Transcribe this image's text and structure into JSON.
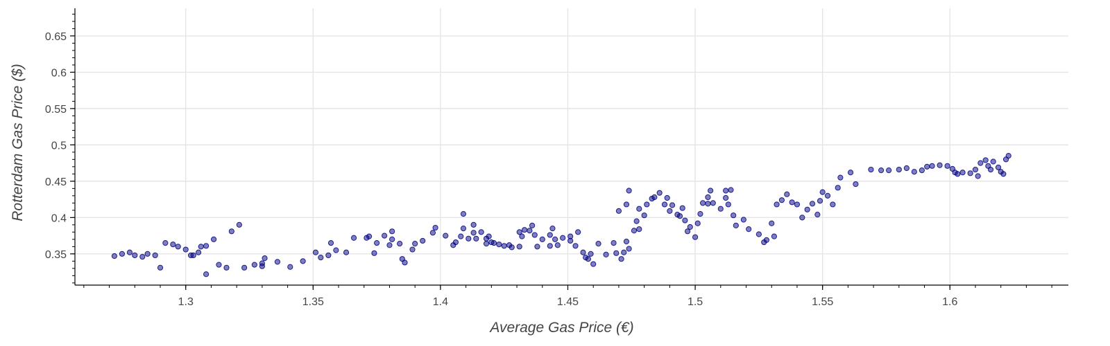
{
  "chart_data": {
    "type": "scatter",
    "title": "",
    "xlabel": "Average Gas Price (€)",
    "ylabel": "Rotterdam Gas Price ($)",
    "xlim": [
      1.2565,
      1.6465
    ],
    "ylim": [
      0.307,
      0.688
    ],
    "x_ticks": [
      "1.3",
      "1.35",
      "1.4",
      "1.45",
      "1.5",
      "1.55",
      "1.6"
    ],
    "y_ticks": [
      "0.35",
      "0.4",
      "0.45",
      "0.5",
      "0.55",
      "0.6",
      "0.65"
    ],
    "grid": true,
    "legend": "none",
    "point_color": "#000080",
    "points": [
      [
        1.272,
        0.347
      ],
      [
        1.275,
        0.35
      ],
      [
        1.278,
        0.352
      ],
      [
        1.28,
        0.348
      ],
      [
        1.283,
        0.346
      ],
      [
        1.285,
        0.35
      ],
      [
        1.288,
        0.348
      ],
      [
        1.29,
        0.331
      ],
      [
        1.292,
        0.365
      ],
      [
        1.295,
        0.363
      ],
      [
        1.297,
        0.36
      ],
      [
        1.3,
        0.356
      ],
      [
        1.302,
        0.348
      ],
      [
        1.303,
        0.348
      ],
      [
        1.306,
        0.36
      ],
      [
        1.308,
        0.361
      ],
      [
        1.305,
        0.352
      ],
      [
        1.311,
        0.37
      ],
      [
        1.318,
        0.381
      ],
      [
        1.321,
        0.39
      ],
      [
        1.308,
        0.322
      ],
      [
        1.313,
        0.335
      ],
      [
        1.316,
        0.331
      ],
      [
        1.323,
        0.331
      ],
      [
        1.327,
        0.335
      ],
      [
        1.33,
        0.333
      ],
      [
        1.331,
        0.344
      ],
      [
        1.33,
        0.337
      ],
      [
        1.336,
        0.339
      ],
      [
        1.341,
        0.332
      ],
      [
        1.346,
        0.34
      ],
      [
        1.356,
        0.348
      ],
      [
        1.353,
        0.345
      ],
      [
        1.351,
        0.352
      ],
      [
        1.359,
        0.355
      ],
      [
        1.357,
        0.365
      ],
      [
        1.363,
        0.352
      ],
      [
        1.366,
        0.372
      ],
      [
        1.371,
        0.372
      ],
      [
        1.372,
        0.374
      ],
      [
        1.375,
        0.365
      ],
      [
        1.374,
        0.351
      ],
      [
        1.378,
        0.375
      ],
      [
        1.381,
        0.381
      ],
      [
        1.381,
        0.37
      ],
      [
        1.38,
        0.362
      ],
      [
        1.384,
        0.364
      ],
      [
        1.385,
        0.343
      ],
      [
        1.386,
        0.338
      ],
      [
        1.389,
        0.356
      ],
      [
        1.39,
        0.364
      ],
      [
        1.393,
        0.368
      ],
      [
        1.397,
        0.379
      ],
      [
        1.398,
        0.386
      ],
      [
        1.402,
        0.375
      ],
      [
        1.405,
        0.362
      ],
      [
        1.406,
        0.366
      ],
      [
        1.408,
        0.374
      ],
      [
        1.409,
        0.385
      ],
      [
        1.411,
        0.371
      ],
      [
        1.413,
        0.379
      ],
      [
        1.414,
        0.371
      ],
      [
        1.409,
        0.405
      ],
      [
        1.413,
        0.39
      ],
      [
        1.416,
        0.38
      ],
      [
        1.418,
        0.371
      ],
      [
        1.419,
        0.374
      ],
      [
        1.418,
        0.364
      ],
      [
        1.42,
        0.366
      ],
      [
        1.421,
        0.365
      ],
      [
        1.423,
        0.363
      ],
      [
        1.425,
        0.361
      ],
      [
        1.427,
        0.362
      ],
      [
        1.428,
        0.359
      ],
      [
        1.431,
        0.36
      ],
      [
        1.432,
        0.374
      ],
      [
        1.431,
        0.38
      ],
      [
        1.433,
        0.383
      ],
      [
        1.436,
        0.389
      ],
      [
        1.435,
        0.382
      ],
      [
        1.437,
        0.376
      ],
      [
        1.438,
        0.36
      ],
      [
        1.44,
        0.37
      ],
      [
        1.443,
        0.361
      ],
      [
        1.446,
        0.362
      ],
      [
        1.443,
        0.376
      ],
      [
        1.444,
        0.385
      ],
      [
        1.445,
        0.37
      ],
      [
        1.448,
        0.372
      ],
      [
        1.451,
        0.368
      ],
      [
        1.451,
        0.374
      ],
      [
        1.454,
        0.38
      ],
      [
        1.453,
        0.361
      ],
      [
        1.456,
        0.352
      ],
      [
        1.457,
        0.345
      ],
      [
        1.458,
        0.343
      ],
      [
        1.46,
        0.336
      ],
      [
        1.459,
        0.35
      ],
      [
        1.462,
        0.364
      ],
      [
        1.465,
        0.349
      ],
      [
        1.468,
        0.365
      ],
      [
        1.469,
        0.351
      ],
      [
        1.472,
        0.352
      ],
      [
        1.471,
        0.343
      ],
      [
        1.474,
        0.357
      ],
      [
        1.473,
        0.367
      ],
      [
        1.476,
        0.382
      ],
      [
        1.478,
        0.384
      ],
      [
        1.477,
        0.395
      ],
      [
        1.48,
        0.403
      ],
      [
        1.478,
        0.412
      ],
      [
        1.481,
        0.418
      ],
      [
        1.483,
        0.426
      ],
      [
        1.484,
        0.428
      ],
      [
        1.47,
        0.409
      ],
      [
        1.473,
        0.418
      ],
      [
        1.474,
        0.437
      ],
      [
        1.486,
        0.434
      ],
      [
        1.489,
        0.427
      ],
      [
        1.488,
        0.418
      ],
      [
        1.491,
        0.417
      ],
      [
        1.49,
        0.409
      ],
      [
        1.493,
        0.404
      ],
      [
        1.495,
        0.413
      ],
      [
        1.494,
        0.402
      ],
      [
        1.496,
        0.396
      ],
      [
        1.498,
        0.387
      ],
      [
        1.497,
        0.381
      ],
      [
        1.5,
        0.373
      ],
      [
        1.501,
        0.392
      ],
      [
        1.502,
        0.405
      ],
      [
        1.503,
        0.42
      ],
      [
        1.505,
        0.419
      ],
      [
        1.505,
        0.428
      ],
      [
        1.507,
        0.42
      ],
      [
        1.506,
        0.437
      ],
      [
        1.51,
        0.412
      ],
      [
        1.512,
        0.427
      ],
      [
        1.512,
        0.437
      ],
      [
        1.514,
        0.438
      ],
      [
        1.513,
        0.418
      ],
      [
        1.515,
        0.403
      ],
      [
        1.516,
        0.389
      ],
      [
        1.519,
        0.397
      ],
      [
        1.521,
        0.384
      ],
      [
        1.525,
        0.377
      ],
      [
        1.528,
        0.369
      ],
      [
        1.527,
        0.366
      ],
      [
        1.531,
        0.374
      ],
      [
        1.53,
        0.392
      ],
      [
        1.532,
        0.418
      ],
      [
        1.534,
        0.424
      ],
      [
        1.536,
        0.432
      ],
      [
        1.538,
        0.421
      ],
      [
        1.54,
        0.418
      ],
      [
        1.542,
        0.4
      ],
      [
        1.544,
        0.411
      ],
      [
        1.546,
        0.419
      ],
      [
        1.548,
        0.404
      ],
      [
        1.549,
        0.423
      ],
      [
        1.55,
        0.435
      ],
      [
        1.552,
        0.43
      ],
      [
        1.554,
        0.418
      ],
      [
        1.556,
        0.441
      ],
      [
        1.557,
        0.455
      ],
      [
        1.561,
        0.462
      ],
      [
        1.563,
        0.446
      ],
      [
        1.569,
        0.466
      ],
      [
        1.573,
        0.465
      ],
      [
        1.576,
        0.465
      ],
      [
        1.58,
        0.466
      ],
      [
        1.583,
        0.468
      ],
      [
        1.586,
        0.463
      ],
      [
        1.589,
        0.465
      ],
      [
        1.591,
        0.47
      ],
      [
        1.593,
        0.471
      ],
      [
        1.596,
        0.472
      ],
      [
        1.599,
        0.471
      ],
      [
        1.601,
        0.467
      ],
      [
        1.602,
        0.462
      ],
      [
        1.603,
        0.46
      ],
      [
        1.605,
        0.462
      ],
      [
        1.608,
        0.461
      ],
      [
        1.61,
        0.466
      ],
      [
        1.611,
        0.457
      ],
      [
        1.612,
        0.475
      ],
      [
        1.614,
        0.479
      ],
      [
        1.615,
        0.471
      ],
      [
        1.616,
        0.466
      ],
      [
        1.617,
        0.477
      ],
      [
        1.619,
        0.469
      ],
      [
        1.62,
        0.463
      ],
      [
        1.621,
        0.46
      ],
      [
        1.622,
        0.48
      ],
      [
        1.623,
        0.485
      ]
    ]
  }
}
